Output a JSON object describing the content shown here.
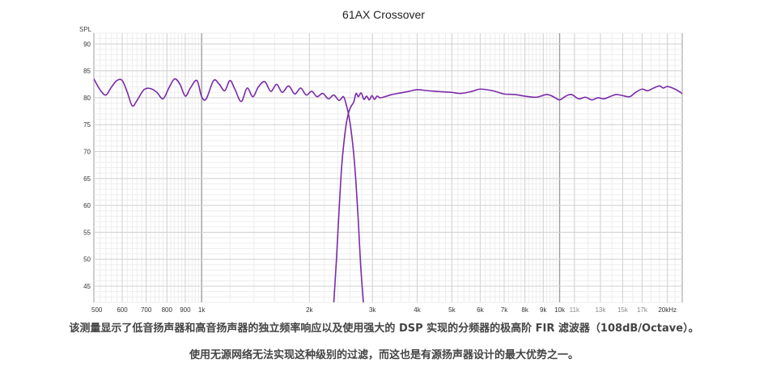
{
  "chart_data": {
    "type": "line",
    "title": "61AX Crossover",
    "ylabel": "SPL",
    "xlabel": "",
    "x_unit": "Hz",
    "x_scale": "log",
    "xlim": [
      500,
      22000
    ],
    "ylim": [
      42,
      92
    ],
    "grid": true,
    "legend": "none",
    "y_ticks": [
      45,
      50,
      55,
      60,
      65,
      70,
      75,
      80,
      85,
      90
    ],
    "x_ticks": [
      {
        "value": 500,
        "label": "500",
        "major": false
      },
      {
        "value": 600,
        "label": "600",
        "major": false
      },
      {
        "value": 700,
        "label": "700",
        "major": false
      },
      {
        "value": 800,
        "label": "800",
        "major": false
      },
      {
        "value": 900,
        "label": "900",
        "major": false
      },
      {
        "value": 1000,
        "label": "1k",
        "major": true
      },
      {
        "value": 2000,
        "label": "2k",
        "major": false
      },
      {
        "value": 3000,
        "label": "3k",
        "major": false
      },
      {
        "value": 4000,
        "label": "4k",
        "major": false
      },
      {
        "value": 5000,
        "label": "5k",
        "major": false
      },
      {
        "value": 6000,
        "label": "6k",
        "major": false
      },
      {
        "value": 7000,
        "label": "7k",
        "major": false
      },
      {
        "value": 8000,
        "label": "8k",
        "major": false
      },
      {
        "value": 9000,
        "label": "9k",
        "major": false
      },
      {
        "value": 10000,
        "label": "10k",
        "major": true
      },
      {
        "value": 11000,
        "label": "11k",
        "major": false,
        "faint": true
      },
      {
        "value": 13000,
        "label": "13k",
        "major": false,
        "faint": true
      },
      {
        "value": 15000,
        "label": "15k",
        "major": false,
        "faint": true
      },
      {
        "value": 17000,
        "label": "17k",
        "major": false,
        "faint": true
      },
      {
        "value": 20000,
        "label": "20kHz",
        "major": false
      }
    ],
    "series": [
      {
        "color": "#7a2aa8",
        "points": [
          [
            500,
            83.5
          ],
          [
            520,
            81.5
          ],
          [
            540,
            80.5
          ],
          [
            560,
            82
          ],
          [
            580,
            83.2
          ],
          [
            600,
            83.2
          ],
          [
            620,
            81
          ],
          [
            640,
            78.5
          ],
          [
            660,
            79.5
          ],
          [
            690,
            81.5
          ],
          [
            720,
            81.7
          ],
          [
            750,
            81
          ],
          [
            780,
            79.8
          ],
          [
            810,
            81.8
          ],
          [
            840,
            83.5
          ],
          [
            870,
            82.5
          ],
          [
            900,
            80.3
          ],
          [
            930,
            81.8
          ],
          [
            970,
            83.2
          ],
          [
            1000,
            80.2
          ],
          [
            1030,
            79.8
          ],
          [
            1080,
            83.2
          ],
          [
            1120,
            82.5
          ],
          [
            1160,
            81.3
          ],
          [
            1200,
            83.2
          ],
          [
            1240,
            81.5
          ],
          [
            1290,
            79.3
          ],
          [
            1340,
            81.8
          ],
          [
            1390,
            80.2
          ],
          [
            1440,
            82
          ],
          [
            1500,
            83
          ],
          [
            1560,
            81.2
          ],
          [
            1620,
            82.5
          ],
          [
            1680,
            81
          ],
          [
            1750,
            82.2
          ],
          [
            1820,
            80.7
          ],
          [
            1890,
            81.8
          ],
          [
            1960,
            80.5
          ],
          [
            2030,
            81.2
          ],
          [
            2100,
            80.2
          ],
          [
            2180,
            80.8
          ],
          [
            2260,
            79.8
          ],
          [
            2340,
            80.5
          ],
          [
            2420,
            79.5
          ],
          [
            2490,
            80.2
          ],
          [
            2540,
            78.5
          ],
          [
            2580,
            76.5
          ],
          [
            2620,
            73.5
          ],
          [
            2660,
            69.5
          ],
          [
            2700,
            64
          ],
          [
            2740,
            57
          ],
          [
            2780,
            49
          ],
          [
            2830,
            42
          ]
        ]
      },
      {
        "color": "#7a2aa8",
        "points": [
          [
            2340,
            42
          ],
          [
            2380,
            50
          ],
          [
            2420,
            59
          ],
          [
            2460,
            67
          ],
          [
            2500,
            72
          ],
          [
            2540,
            75.5
          ],
          [
            2580,
            77.5
          ],
          [
            2620,
            78.5
          ],
          [
            2660,
            79.2
          ],
          [
            2700,
            80.8
          ],
          [
            2740,
            80.2
          ],
          [
            2790,
            80.9
          ],
          [
            2840,
            79.7
          ],
          [
            2890,
            80.3
          ],
          [
            2940,
            79.6
          ],
          [
            2990,
            80.4
          ],
          [
            3040,
            79.7
          ],
          [
            3090,
            80.3
          ],
          [
            3150,
            80
          ],
          [
            3250,
            80.2
          ],
          [
            3400,
            80.6
          ],
          [
            3600,
            80.9
          ],
          [
            3800,
            81.2
          ],
          [
            4000,
            81.5
          ],
          [
            4300,
            81.3
          ],
          [
            4700,
            81.1
          ],
          [
            5000,
            81
          ],
          [
            5300,
            80.8
          ],
          [
            5700,
            81.2
          ],
          [
            6000,
            81.6
          ],
          [
            6500,
            81.3
          ],
          [
            7000,
            80.7
          ],
          [
            7500,
            80.6
          ],
          [
            8000,
            80.3
          ],
          [
            8600,
            80.1
          ],
          [
            9200,
            80.6
          ],
          [
            9600,
            80.2
          ],
          [
            10000,
            79.6
          ],
          [
            10400,
            80.3
          ],
          [
            10800,
            80.6
          ],
          [
            11300,
            79.8
          ],
          [
            11800,
            80.1
          ],
          [
            12300,
            79.6
          ],
          [
            12800,
            80
          ],
          [
            13300,
            79.8
          ],
          [
            13800,
            80.2
          ],
          [
            14400,
            80.6
          ],
          [
            15000,
            80.4
          ],
          [
            15700,
            80.2
          ],
          [
            16300,
            81
          ],
          [
            17000,
            81.6
          ],
          [
            17600,
            81.3
          ],
          [
            18300,
            81.8
          ],
          [
            19000,
            82.2
          ],
          [
            19500,
            81.8
          ],
          [
            20000,
            82.1
          ],
          [
            21000,
            81.6
          ],
          [
            22000,
            80.8
          ]
        ]
      }
    ]
  },
  "captions": {
    "line1": "该测量显示了低音扬声器和高音扬声器的独立频率响应以及使用强大的 DSP 实现的分频器的极高阶 FIR 滤波器（108dB/Octave）。",
    "line2": "使用无源网络无法实现这种级别的过滤，而这也是有源扬声器设计的最大优势之一。"
  }
}
